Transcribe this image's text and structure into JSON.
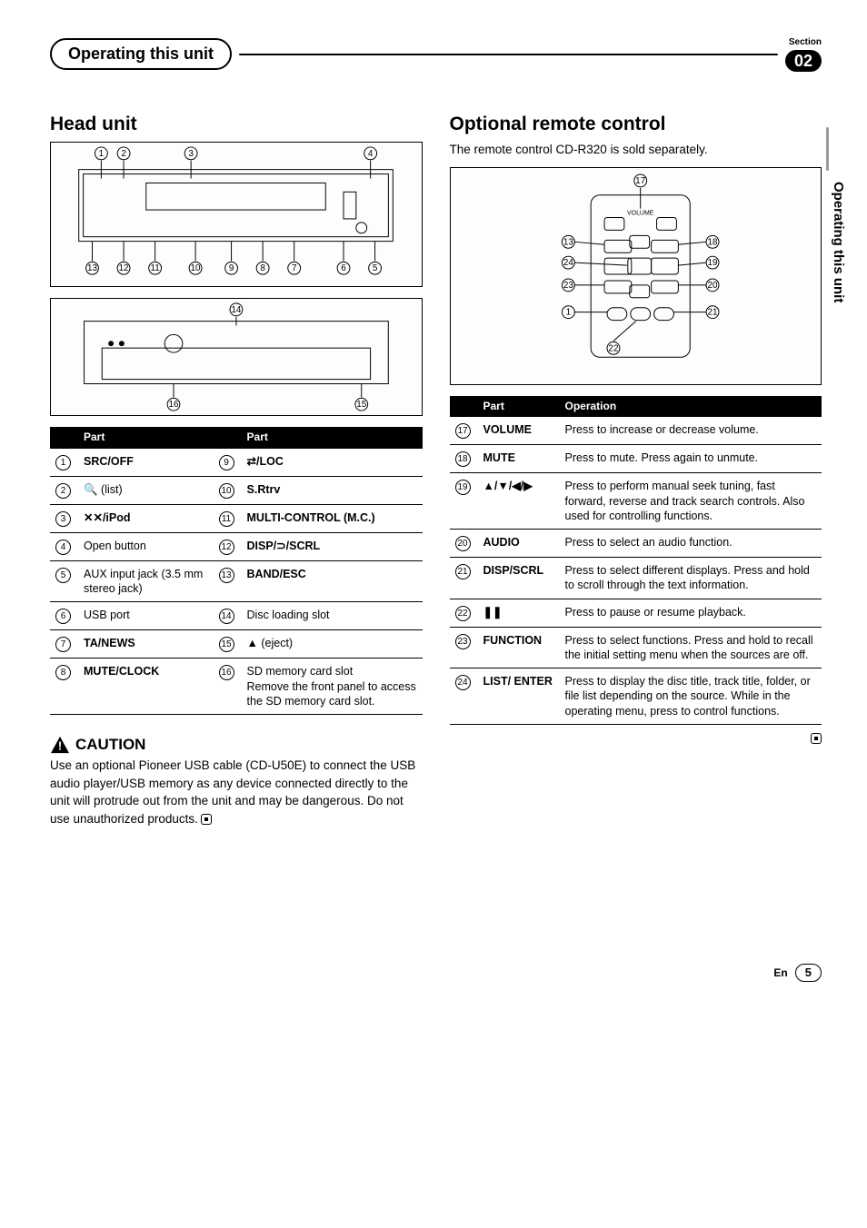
{
  "header": {
    "tab_title": "Operating this unit",
    "section_label": "Section",
    "section_number": "02"
  },
  "side_tab": "Operating this unit",
  "left": {
    "heading": "Head unit",
    "table_header1": "Part",
    "table_header2": "Part",
    "rows": [
      {
        "n1": "1",
        "p1": "SRC/OFF",
        "n2": "9",
        "p2": "⇄/LOC",
        "b1": true,
        "b2": true
      },
      {
        "n1": "2",
        "p1": "🔍 (list)",
        "n2": "10",
        "p2": "S.Rtrv",
        "b1": false,
        "b2": true
      },
      {
        "n1": "3",
        "p1": "✕✕/iPod",
        "n2": "11",
        "p2": "MULTI-CONTROL (M.C.)",
        "b1": true,
        "b2": true
      },
      {
        "n1": "4",
        "p1": "Open button",
        "n2": "12",
        "p2": "DISP/⊃/SCRL",
        "b1": false,
        "b2": true
      },
      {
        "n1": "5",
        "p1": "AUX input jack (3.5 mm stereo jack)",
        "n2": "13",
        "p2": "BAND/ESC",
        "b1": false,
        "b2": true
      },
      {
        "n1": "6",
        "p1": "USB port",
        "n2": "14",
        "p2": "Disc loading slot",
        "b1": false,
        "b2": false
      },
      {
        "n1": "7",
        "p1": "TA/NEWS",
        "n2": "15",
        "p2": "▲ (eject)",
        "b1": true,
        "b2": false
      },
      {
        "n1": "8",
        "p1": "MUTE/CLOCK",
        "n2": "16",
        "p2": "SD memory card slot\nRemove the front panel to access the SD memory card slot.",
        "b1": true,
        "b2": false
      }
    ],
    "caution_label": "CAUTION",
    "caution_text": "Use an optional Pioneer USB cable (CD-U50E) to connect the USB audio player/USB memory as any device connected directly to the unit will protrude out from the unit and may be dangerous. Do not use unauthorized products."
  },
  "right": {
    "heading": "Optional remote control",
    "intro": "The remote control CD-R320 is sold separately.",
    "table_header1": "Part",
    "table_header2": "Operation",
    "rows": [
      {
        "n": "17",
        "part": "VOLUME",
        "op": "Press to increase or decrease volume."
      },
      {
        "n": "18",
        "part": "MUTE",
        "op": "Press to mute. Press again to unmute."
      },
      {
        "n": "19",
        "part": "▲/▼/◀/▶",
        "op": "Press to perform manual seek tuning, fast forward, reverse and track search controls. Also used for controlling functions."
      },
      {
        "n": "20",
        "part": "AUDIO",
        "op": "Press to select an audio function."
      },
      {
        "n": "21",
        "part": "DISP/SCRL",
        "op": "Press to select different displays. Press and hold to scroll through the text information."
      },
      {
        "n": "22",
        "part": "❚❚",
        "op": "Press to pause or resume playback."
      },
      {
        "n": "23",
        "part": "FUNCTION",
        "op": "Press to select functions. Press and hold to recall the initial setting menu when the sources are off."
      },
      {
        "n": "24",
        "part": "LIST/ ENTER",
        "op": "Press to display the disc title, track title, folder, or file list depending on the source. While in the operating menu, press to control functions."
      }
    ]
  },
  "footer": {
    "lang": "En",
    "page": "5"
  },
  "colors": {
    "black": "#000000",
    "white": "#ffffff"
  }
}
